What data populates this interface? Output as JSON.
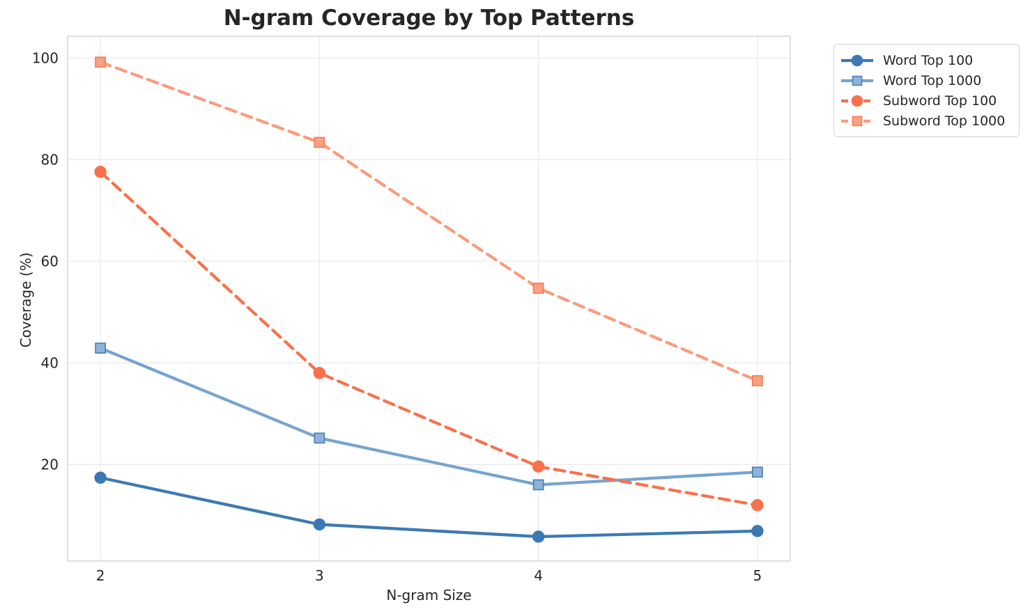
{
  "chart_data": {
    "type": "line",
    "title": "N-gram Coverage by Top Patterns",
    "xlabel": "N-gram Size",
    "ylabel": "Coverage (%)",
    "x": [
      2,
      3,
      4,
      5
    ],
    "x_tick_labels": [
      "2",
      "3",
      "4",
      "5"
    ],
    "y_ticks": [
      20,
      40,
      60,
      80,
      100
    ],
    "xlim": [
      1.85,
      5.15
    ],
    "ylim": [
      1.0,
      104.3
    ],
    "grid": true,
    "legend_position": "outside-upper-right",
    "colors": {
      "grid": "#ebebeb",
      "spine": "#d2d2d2",
      "text": "#262626"
    },
    "series": [
      {
        "name": "Word Top 100",
        "color": "#3c79b4",
        "marker": "circle",
        "marker_fill": "#3c79b4",
        "marker_edge": "#3c79b4",
        "line_style": "solid",
        "values": [
          17.4,
          8.2,
          5.8,
          6.9
        ]
      },
      {
        "name": "Word Top 1000",
        "color": "#77a4cf",
        "marker": "square",
        "marker_fill": "#8fb3d8",
        "marker_edge": "#4d83b7",
        "line_style": "solid",
        "values": [
          42.9,
          25.2,
          16.0,
          18.5
        ]
      },
      {
        "name": "Subword Top 100",
        "color": "#f8714c",
        "marker": "circle",
        "marker_fill": "#f8714c",
        "marker_edge": "#f8714c",
        "line_style": "dashed",
        "values": [
          77.6,
          38.0,
          19.6,
          12.0
        ]
      },
      {
        "name": "Subword Top 1000",
        "color": "#fa9c7d",
        "marker": "square",
        "marker_fill": "#f9a183",
        "marker_edge": "#f87c57",
        "line_style": "dashed",
        "values": [
          99.2,
          83.4,
          54.7,
          36.5
        ]
      }
    ]
  }
}
